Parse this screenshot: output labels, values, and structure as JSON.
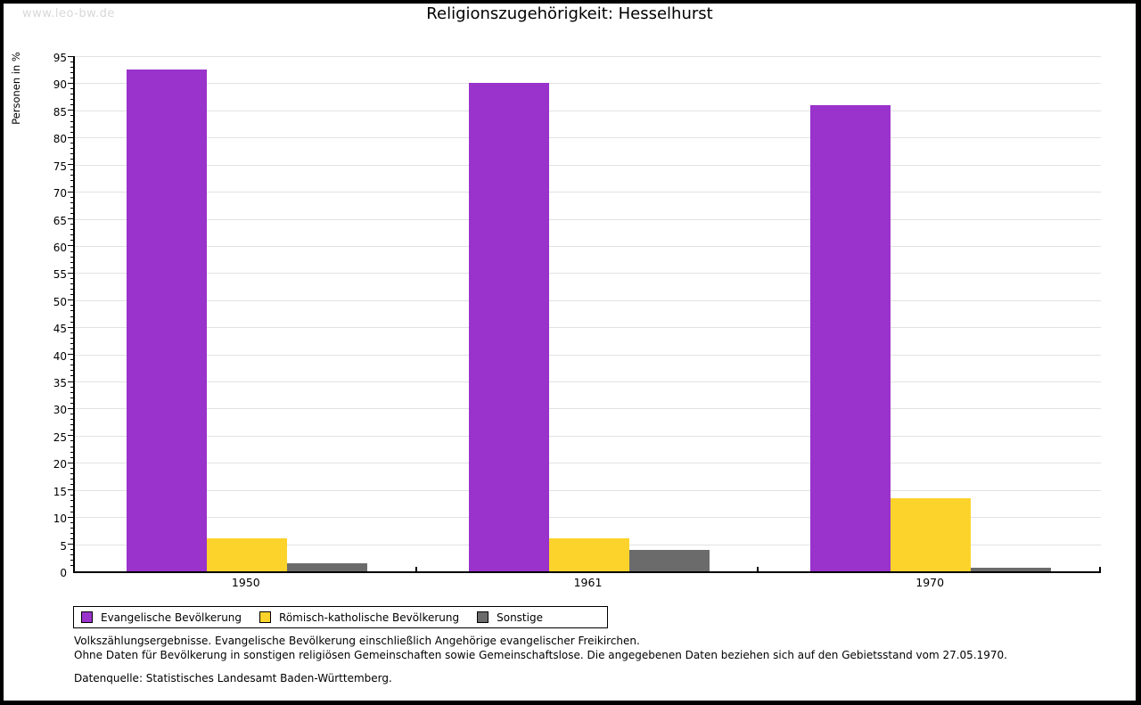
{
  "watermark": "www.leo-bw.de",
  "title": "Religionszugehörigkeit: Hesselhurst",
  "chart_data": {
    "type": "bar",
    "title": "Religionszugehörigkeit: Hesselhurst",
    "xlabel": "",
    "ylabel": "Personen in %",
    "ylim": [
      0,
      95
    ],
    "ytick_step": 5,
    "minor_tick_step": 1,
    "yticks": [
      0,
      5,
      10,
      15,
      20,
      25,
      30,
      35,
      40,
      45,
      50,
      55,
      60,
      65,
      70,
      75,
      80,
      85,
      90,
      95
    ],
    "grid": true,
    "gridline_color": "#e2e2e2",
    "categories": [
      "1950",
      "1961",
      "1970"
    ],
    "series": [
      {
        "name": "Evangelische Bevölkerung",
        "color": "#9933cc",
        "values": [
          92.6,
          90.0,
          86.0
        ]
      },
      {
        "name": "Römisch-katholische Bevölkerung",
        "color": "#fcd32b",
        "values": [
          6.1,
          6.1,
          13.4
        ]
      },
      {
        "name": "Sonstige",
        "color": "#6b6b6b",
        "values": [
          1.4,
          4.0,
          0.7
        ]
      }
    ],
    "legend_position": "bottom-left"
  },
  "footnotes": {
    "line1": "Volkszählungsergebnisse. Evangelische Bevölkerung einschließlich Angehörige evangelischer Freikirchen.",
    "line2": "Ohne Daten für Bevölkerung in sonstigen religiösen Gemeinschaften sowie Gemeinschaftslose. Die angegebenen Daten beziehen sich auf den Gebietsstand vom 27.05.1970.",
    "source": "Datenquelle: Statistisches Landesamt Baden-Württemberg."
  }
}
